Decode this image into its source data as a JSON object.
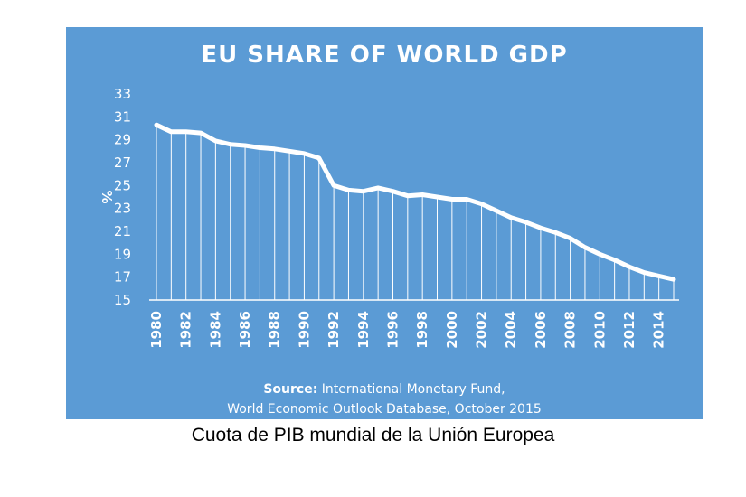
{
  "chart_data": {
    "type": "area",
    "title": "EU SHARE OF WORLD GDP",
    "ylabel": "%",
    "xlabel": "",
    "ylim": [
      15,
      33
    ],
    "yticks": [
      15,
      17,
      19,
      21,
      23,
      25,
      27,
      29,
      31,
      33
    ],
    "xtick_labels": [
      "1980",
      "1982",
      "1984",
      "1986",
      "1988",
      "1990",
      "1992",
      "1994",
      "1996",
      "1998",
      "2000",
      "2002",
      "2004",
      "2006",
      "2008",
      "2010",
      "2012",
      "2014"
    ],
    "x": [
      1980,
      1981,
      1982,
      1983,
      1984,
      1985,
      1986,
      1987,
      1988,
      1989,
      1990,
      1991,
      1992,
      1993,
      1994,
      1995,
      1996,
      1997,
      1998,
      1999,
      2000,
      2001,
      2002,
      2003,
      2004,
      2005,
      2006,
      2007,
      2008,
      2009,
      2010,
      2011,
      2012,
      2013,
      2014,
      2015
    ],
    "series": [
      {
        "name": "EU share of world GDP",
        "values": [
          30.3,
          29.7,
          29.7,
          29.6,
          28.9,
          28.6,
          28.5,
          28.3,
          28.2,
          28.0,
          27.8,
          27.4,
          25.0,
          24.6,
          24.5,
          24.8,
          24.5,
          24.1,
          24.2,
          24.0,
          23.8,
          23.8,
          23.4,
          22.8,
          22.2,
          21.8,
          21.3,
          20.9,
          20.4,
          19.6,
          19.0,
          18.5,
          17.9,
          17.4,
          17.1,
          16.8
        ]
      }
    ],
    "grid": false,
    "colors": {
      "background": "#5b9bd5",
      "line": "#ffffff"
    }
  },
  "source": {
    "label": "Source:",
    "line1": "International Monetary Fund,",
    "line2": "World Economic Outlook Database, October 2015"
  },
  "caption": "Cuota de PIB mundial de la Unión Europea"
}
